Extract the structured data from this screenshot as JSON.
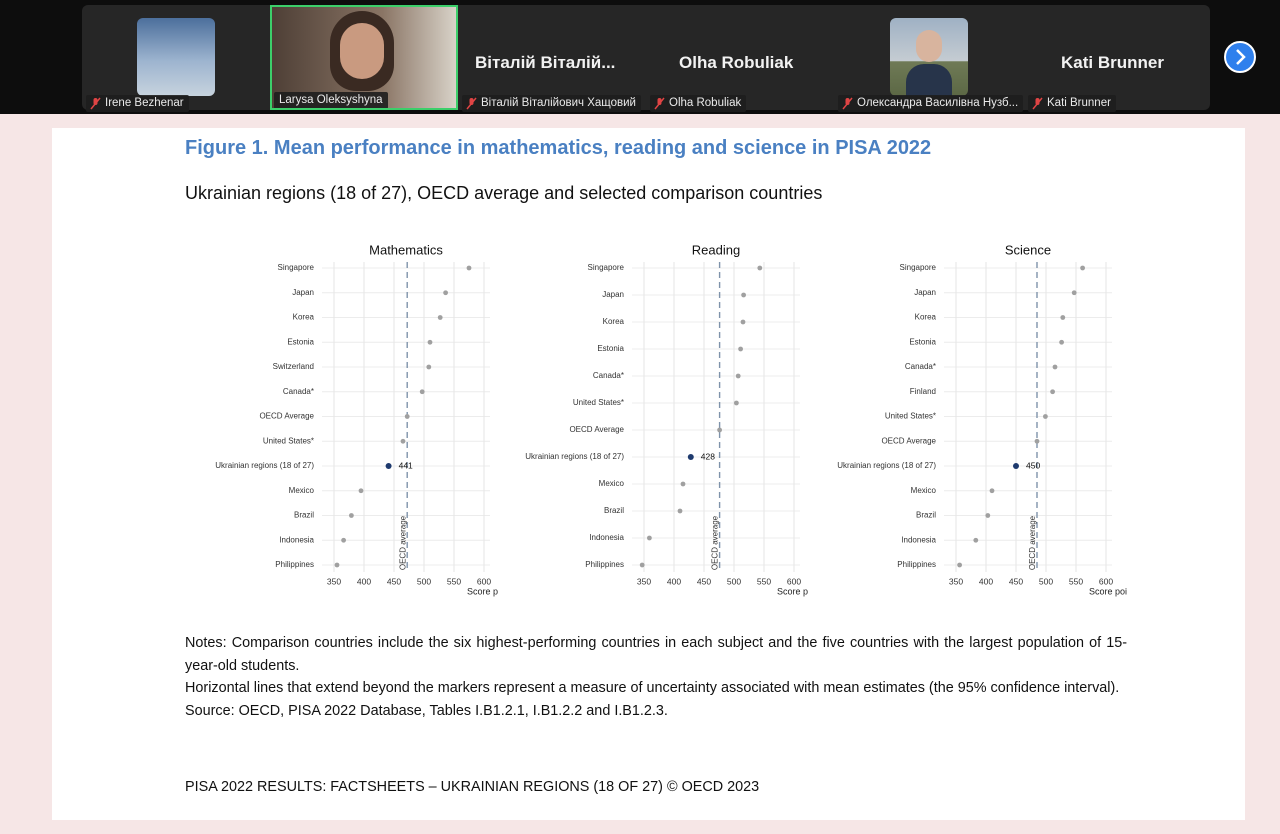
{
  "participants": [
    {
      "name": "Irene Bezhenar"
    },
    {
      "name": "Larysa Oleksyshyna"
    },
    {
      "display": "Віталій Віталій...",
      "name": "Віталій Віталійович Хащовий"
    },
    {
      "display": "Olha Robuliak",
      "name": "Olha Robuliak"
    },
    {
      "name": "Олександра Василівна Нузб..."
    },
    {
      "display": "Kati Brunner",
      "name": "Kati Brunner"
    }
  ],
  "slide": {
    "title": "Figure 1. Mean performance in mathematics, reading and science in PISA 2022",
    "subtitle": "Ukrainian regions (18 of 27), OECD average and selected comparison countries",
    "notes": [
      "Notes: Comparison countries include the six highest-performing countries in each subject and the five countries with the largest population of 15-year-old students.",
      "Horizontal lines that extend beyond the markers represent a measure of uncertainty associated with mean estimates (the 95% confidence interval).",
      "Source: OECD, PISA 2022 Database, Tables I.B1.2.1, I.B1.2.2 and I.B1.2.3."
    ],
    "footer": "PISA 2022 RESULTS: FACTSHEETS –  UKRAINIAN REGIONS (18 OF 27) © OECD 2023"
  },
  "chart_data": [
    {
      "type": "dot",
      "title": "Mathematics",
      "xlabel": "Score p",
      "categories": [
        "Singapore",
        "Japan",
        "Korea",
        "Estonia",
        "Switzerland",
        "Canada*",
        "OECD Average",
        "United States*",
        "Ukrainian regions (18 of 27)",
        "Mexico",
        "Brazil",
        "Indonesia",
        "Philippines"
      ],
      "values": [
        575,
        536,
        527,
        510,
        508,
        497,
        472,
        465,
        441,
        395,
        379,
        366,
        355
      ],
      "colors": [
        "#a0a0a0",
        "#a0a0a0",
        "#a0a0a0",
        "#a0a0a0",
        "#a0a0a0",
        "#a0a0a0",
        "#a0a0a0",
        "#a0a0a0",
        "#1e3a6e",
        "#a0a0a0",
        "#a0a0a0",
        "#a0a0a0",
        "#a0a0a0"
      ],
      "labeled": [
        false,
        false,
        false,
        false,
        false,
        false,
        false,
        false,
        true,
        false,
        false,
        false,
        false
      ],
      "xlim": [
        330,
        610
      ],
      "xticks": [
        350,
        400,
        450,
        500,
        550,
        600
      ],
      "grid": true,
      "reference_line": {
        "value": 472,
        "label": "OECD average"
      }
    },
    {
      "type": "dot",
      "title": "Reading",
      "xlabel": "Score p",
      "categories": [
        "Singapore",
        "Japan",
        "Korea",
        "Estonia",
        "Canada*",
        "United States*",
        "OECD Average",
        "Ukrainian regions (18 of 27)",
        "Mexico",
        "Brazil",
        "Indonesia",
        "Philippines"
      ],
      "values": [
        543,
        516,
        515,
        511,
        507,
        504,
        476,
        428,
        415,
        410,
        359,
        347
      ],
      "colors": [
        "#a0a0a0",
        "#a0a0a0",
        "#a0a0a0",
        "#a0a0a0",
        "#a0a0a0",
        "#a0a0a0",
        "#a0a0a0",
        "#1e3a6e",
        "#a0a0a0",
        "#a0a0a0",
        "#a0a0a0",
        "#a0a0a0"
      ],
      "labeled": [
        false,
        false,
        false,
        false,
        false,
        false,
        false,
        true,
        false,
        false,
        false,
        false
      ],
      "xlim": [
        330,
        610
      ],
      "xticks": [
        350,
        400,
        450,
        500,
        550,
        600
      ],
      "grid": true,
      "reference_line": {
        "value": 476,
        "label": "OECD average"
      }
    },
    {
      "type": "dot",
      "title": "Science",
      "xlabel": "Score poi",
      "categories": [
        "Singapore",
        "Japan",
        "Korea",
        "Estonia",
        "Canada*",
        "Finland",
        "United States*",
        "OECD Average",
        "Ukrainian regions (18 of 27)",
        "Mexico",
        "Brazil",
        "Indonesia",
        "Philippines"
      ],
      "values": [
        561,
        547,
        528,
        526,
        515,
        511,
        499,
        485,
        450,
        410,
        403,
        383,
        356
      ],
      "colors": [
        "#a0a0a0",
        "#a0a0a0",
        "#a0a0a0",
        "#a0a0a0",
        "#a0a0a0",
        "#a0a0a0",
        "#a0a0a0",
        "#a0a0a0",
        "#1e3a6e",
        "#a0a0a0",
        "#a0a0a0",
        "#a0a0a0",
        "#a0a0a0"
      ],
      "labeled": [
        false,
        false,
        false,
        false,
        false,
        false,
        false,
        false,
        true,
        false,
        false,
        false,
        false
      ],
      "xlim": [
        330,
        610
      ],
      "xticks": [
        350,
        400,
        450,
        500,
        550,
        600
      ],
      "grid": true,
      "reference_line": {
        "value": 485,
        "label": "OECD average"
      }
    }
  ]
}
